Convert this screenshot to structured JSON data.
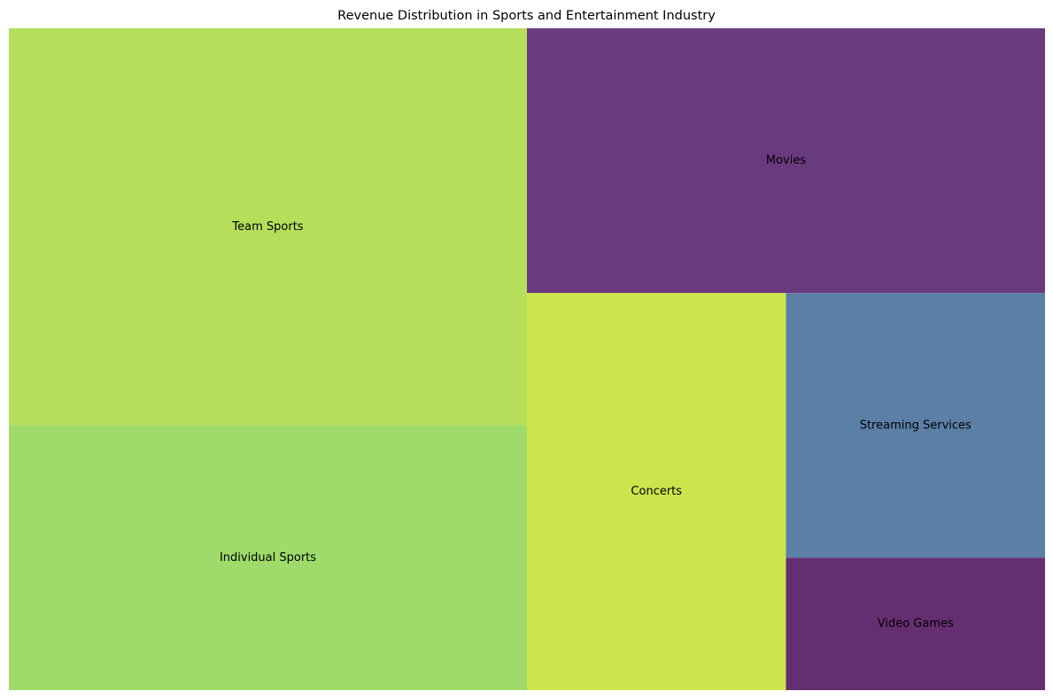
{
  "chart_data": {
    "type": "treemap",
    "title": "Revenue Distribution in Sports and Entertainment Industry",
    "segments": [
      {
        "label": "Team Sports",
        "value": 30,
        "color": "#b5df5a"
      },
      {
        "label": "Individual Sports",
        "value": 20,
        "color": "#9fdb6a"
      },
      {
        "label": "Concerts",
        "value": 15,
        "color": "#cde44c"
      },
      {
        "label": "Movies",
        "value": 20,
        "color": "#6a3a7e"
      },
      {
        "label": "Streaming Services",
        "value": 10,
        "color": "#5b7fa6"
      },
      {
        "label": "Video Games",
        "value": 5,
        "color": "#652e70"
      }
    ]
  }
}
